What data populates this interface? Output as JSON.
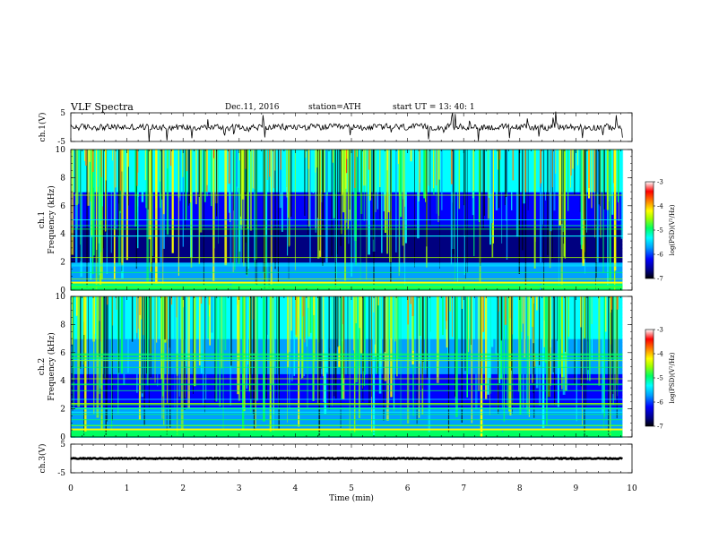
{
  "header": {
    "title": "VLF  Spectra",
    "date": "Dec.11, 2016",
    "station": "station=ATH",
    "start": "start  UT  =   13: 40: 1"
  },
  "chart_data": {
    "type": "heatmap",
    "x": {
      "label": "Time  (min)",
      "range": [
        0,
        10
      ],
      "ticks": [
        "0",
        "1",
        "2",
        "3",
        "4",
        "5",
        "6",
        "7",
        "8",
        "9",
        "10"
      ],
      "data_end": 9.83
    },
    "panels": [
      {
        "id": "ch1-waveform",
        "type": "line",
        "ylabel": "ch.1(V)",
        "ylim": [
          -5,
          5
        ],
        "yticks": [
          "5",
          "-5"
        ]
      },
      {
        "id": "ch1-spectrogram",
        "type": "heatmap",
        "ylabel_top": "ch.1",
        "ylabel": "Frequency  (kHz)",
        "ylim": [
          0,
          10
        ],
        "yticks": [
          "0",
          "2",
          "4",
          "6",
          "8",
          "10"
        ],
        "colorbar": {
          "label": "log(PSD)(V²/Hz)",
          "ticks": [
            "-3",
            "-4",
            "-5",
            "-6",
            "-7"
          ],
          "range": [
            -7,
            -3
          ]
        }
      },
      {
        "id": "ch2-spectrogram",
        "type": "heatmap",
        "ylabel_top": "ch.2",
        "ylabel": "Frequency  (kHz)",
        "ylim": [
          0,
          10
        ],
        "yticks": [
          "0",
          "2",
          "4",
          "6",
          "8",
          "10"
        ],
        "colorbar": {
          "label": "log(PSD)(V²/Hz)",
          "ticks": [
            "-3",
            "-4",
            "-5",
            "-6",
            "-7"
          ],
          "range": [
            -7,
            -3
          ]
        }
      },
      {
        "id": "ch3-waveform",
        "type": "line",
        "ylabel": "ch.3(V)",
        "ylim": [
          -5,
          5
        ],
        "yticks": [
          "5",
          "-5"
        ]
      }
    ],
    "colors": {
      "colormap": [
        "#000000",
        "#000080",
        "#0000ff",
        "#00a0ff",
        "#00ffff",
        "#00ff60",
        "#a0ff00",
        "#ffff00",
        "#ff8000",
        "#ff0000",
        "#ffffff"
      ],
      "line": "#000000"
    }
  }
}
